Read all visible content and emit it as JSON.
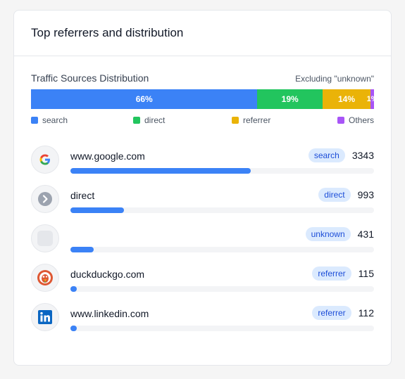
{
  "card": {
    "title": "Top referrers and distribution"
  },
  "distribution": {
    "title": "Traffic Sources Distribution",
    "note": "Excluding \"unknown\"",
    "segments": [
      {
        "label": "66%",
        "share": 0.66,
        "color": "#3b82f6"
      },
      {
        "label": "19%",
        "share": 0.19,
        "color": "#22c55e"
      },
      {
        "label": "14%",
        "share": 0.14,
        "color": "#eab308"
      },
      {
        "label": "1%",
        "share": 0.01,
        "color": "#a855f7"
      }
    ],
    "legend": [
      {
        "label": "search",
        "color": "#3b82f6"
      },
      {
        "label": "direct",
        "color": "#22c55e"
      },
      {
        "label": "referrer",
        "color": "#eab308"
      },
      {
        "label": "Others",
        "color": "#a855f7"
      }
    ]
  },
  "referrers": [
    {
      "name": "www.google.com",
      "icon": "google-icon",
      "badge": "search",
      "count": "3343",
      "share": 0.595
    },
    {
      "name": "direct",
      "icon": "arrow-right-icon",
      "badge": "direct",
      "count": "993",
      "share": 0.177
    },
    {
      "name": "",
      "icon": "placeholder-icon",
      "badge": "unknown",
      "count": "431",
      "share": 0.077
    },
    {
      "name": "duckduckgo.com",
      "icon": "duckduckgo-icon",
      "badge": "referrer",
      "count": "115",
      "share": 0.02
    },
    {
      "name": "www.linkedin.com",
      "icon": "linkedin-icon",
      "badge": "referrer",
      "count": "112",
      "share": 0.02
    }
  ]
}
